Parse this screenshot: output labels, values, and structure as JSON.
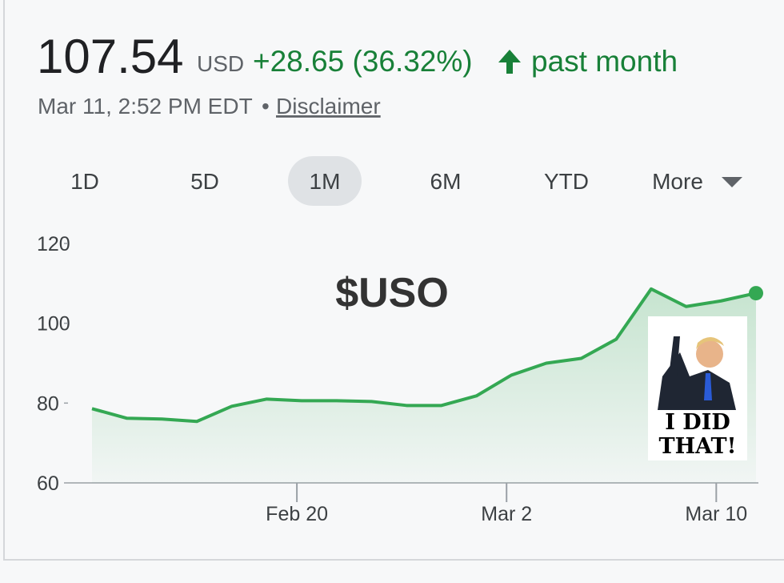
{
  "header": {
    "price": "107.54",
    "currency": "USD",
    "change": "+28.65 (36.32%)",
    "period": "past month",
    "timestamp": "Mar 11, 2:52 PM EDT",
    "separator": "•",
    "disclaimer": "Disclaimer"
  },
  "tabs": [
    "1D",
    "5D",
    "1M",
    "6M",
    "YTD",
    "More"
  ],
  "selected_tab": "1M",
  "chart_data": {
    "type": "line",
    "annotation": "$USO",
    "sticker": [
      "I DID",
      "THAT!"
    ],
    "categories": [
      null,
      null,
      null,
      null,
      null,
      null,
      "Feb 20",
      null,
      null,
      null,
      null,
      null,
      "Mar 2",
      null,
      null,
      null,
      null,
      null,
      "Mar 10",
      null
    ],
    "series": [
      {
        "name": "USO",
        "color": "#34a853",
        "values": [
          78.6,
          76.2,
          76.0,
          75.4,
          79.2,
          81.0,
          80.6,
          80.6,
          80.4,
          79.4,
          79.4,
          81.8,
          87.0,
          90.0,
          91.2,
          96.0,
          108.6,
          104.2,
          105.6,
          107.54
        ]
      }
    ],
    "ylim": [
      60,
      120
    ],
    "yticks": [
      60,
      80,
      100,
      120
    ]
  }
}
